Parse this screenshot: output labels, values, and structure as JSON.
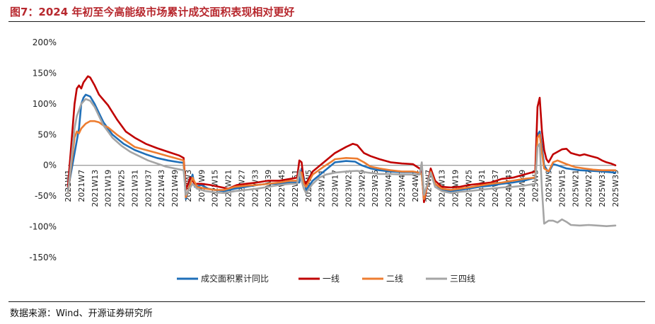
{
  "title": "图7：2024 年初至今高能级市场累计成交面积表现相对更好",
  "source": "数据来源：Wind、开源证券研究所",
  "chart_data": {
    "type": "line",
    "title": "图7：2024 年初至今高能级市场累计成交面积表现相对更好",
    "xlabel": "",
    "ylabel": "",
    "ylim": [
      -150,
      200
    ],
    "yticks": [
      -150,
      -100,
      -50,
      0,
      50,
      100,
      150,
      200
    ],
    "ytick_labels": [
      "-150%",
      "-100%",
      "-50%",
      "0%",
      "50%",
      "100%",
      "150%",
      "200%"
    ],
    "grid": false,
    "legend_position": "bottom",
    "x_count": 247,
    "xtick_labels": [
      "2021W1",
      "2021W7",
      "2021W13",
      "2021W19",
      "2021W25",
      "2021W31",
      "2021W37",
      "2021W43",
      "2021W49",
      "2022W3",
      "2022W9",
      "2022W15",
      "2022W21",
      "2022W27",
      "2022W33",
      "2022W39",
      "2022W45",
      "2022W51",
      "2023W5",
      "2023W11",
      "2023W17",
      "2023W23",
      "2023W29",
      "2023W35",
      "2023W41",
      "2023W47",
      "2024W1",
      "2024W7",
      "2024W13",
      "2024W19",
      "2024W25",
      "2024W31",
      "2024W37",
      "2024W43",
      "2024W49",
      "2025W3",
      "2025W9",
      "2025W15",
      "2025W21",
      "2025W27",
      "2025W33",
      "2025W39"
    ],
    "series": [
      {
        "name": "成交面积累计同比",
        "color": "#1f6fb8",
        "points": [
          [
            0,
            -40
          ],
          [
            5,
            60
          ],
          [
            6,
            100
          ],
          [
            7,
            110
          ],
          [
            8,
            115
          ],
          [
            10,
            112
          ],
          [
            12,
            100
          ],
          [
            14,
            85
          ],
          [
            16,
            70
          ],
          [
            20,
            50
          ],
          [
            25,
            35
          ],
          [
            30,
            25
          ],
          [
            35,
            18
          ],
          [
            40,
            12
          ],
          [
            45,
            8
          ],
          [
            50,
            5
          ],
          [
            52,
            4
          ],
          [
            53,
            -55
          ],
          [
            56,
            -15
          ],
          [
            57,
            -35
          ],
          [
            60,
            -32
          ],
          [
            63,
            -38
          ],
          [
            66,
            -40
          ],
          [
            70,
            -42
          ],
          [
            75,
            -38
          ],
          [
            80,
            -35
          ],
          [
            85,
            -32
          ],
          [
            90,
            -30
          ],
          [
            95,
            -30
          ],
          [
            100,
            -28
          ],
          [
            104,
            -28
          ],
          [
            105,
            -5
          ],
          [
            106,
            -20
          ],
          [
            107,
            -40
          ],
          [
            110,
            -25
          ],
          [
            115,
            -10
          ],
          [
            120,
            5
          ],
          [
            125,
            7
          ],
          [
            129,
            6
          ],
          [
            132,
            0
          ],
          [
            136,
            -5
          ],
          [
            140,
            -8
          ],
          [
            145,
            -10
          ],
          [
            150,
            -11
          ],
          [
            155,
            -11
          ],
          [
            158,
            -12
          ],
          [
            159,
            -15
          ],
          [
            160,
            -55
          ],
          [
            163,
            -10
          ],
          [
            165,
            -30
          ],
          [
            168,
            -40
          ],
          [
            172,
            -42
          ],
          [
            176,
            -40
          ],
          [
            180,
            -38
          ],
          [
            185,
            -35
          ],
          [
            190,
            -33
          ],
          [
            195,
            -30
          ],
          [
            200,
            -28
          ],
          [
            205,
            -25
          ],
          [
            210,
            -20
          ],
          [
            211,
            50
          ],
          [
            212,
            55
          ],
          [
            213,
            30
          ],
          [
            214,
            0
          ],
          [
            216,
            -12
          ],
          [
            218,
            2
          ],
          [
            220,
            0
          ],
          [
            224,
            -5
          ],
          [
            230,
            -8
          ],
          [
            235,
            -9
          ],
          [
            240,
            -10
          ],
          [
            246,
            -12
          ]
        ]
      },
      {
        "name": "一线",
        "color": "#c00000",
        "points": [
          [
            0,
            -35
          ],
          [
            3,
            100
          ],
          [
            4,
            125
          ],
          [
            5,
            130
          ],
          [
            6,
            125
          ],
          [
            7,
            135
          ],
          [
            8,
            140
          ],
          [
            9,
            145
          ],
          [
            10,
            143
          ],
          [
            12,
            130
          ],
          [
            14,
            115
          ],
          [
            18,
            98
          ],
          [
            22,
            75
          ],
          [
            26,
            55
          ],
          [
            30,
            45
          ],
          [
            35,
            35
          ],
          [
            40,
            28
          ],
          [
            45,
            22
          ],
          [
            50,
            16
          ],
          [
            52,
            12
          ],
          [
            53,
            -40
          ],
          [
            55,
            -20
          ],
          [
            57,
            -30
          ],
          [
            60,
            -30
          ],
          [
            64,
            -32
          ],
          [
            68,
            -35
          ],
          [
            72,
            -38
          ],
          [
            76,
            -32
          ],
          [
            80,
            -30
          ],
          [
            85,
            -28
          ],
          [
            90,
            -25
          ],
          [
            95,
            -25
          ],
          [
            100,
            -22
          ],
          [
            103,
            -20
          ],
          [
            104,
            8
          ],
          [
            105,
            5
          ],
          [
            106,
            -25
          ],
          [
            107,
            -30
          ],
          [
            110,
            -10
          ],
          [
            115,
            5
          ],
          [
            120,
            20
          ],
          [
            125,
            30
          ],
          [
            128,
            35
          ],
          [
            130,
            33
          ],
          [
            133,
            20
          ],
          [
            136,
            15
          ],
          [
            140,
            10
          ],
          [
            145,
            5
          ],
          [
            150,
            3
          ],
          [
            155,
            2
          ],
          [
            158,
            -5
          ],
          [
            159,
            -10
          ],
          [
            160,
            -60
          ],
          [
            163,
            -5
          ],
          [
            165,
            -25
          ],
          [
            168,
            -35
          ],
          [
            172,
            -36
          ],
          [
            176,
            -35
          ],
          [
            180,
            -32
          ],
          [
            185,
            -30
          ],
          [
            190,
            -28
          ],
          [
            195,
            -22
          ],
          [
            200,
            -20
          ],
          [
            205,
            -15
          ],
          [
            210,
            -10
          ],
          [
            211,
            95
          ],
          [
            212,
            110
          ],
          [
            213,
            55
          ],
          [
            214,
            25
          ],
          [
            215,
            10
          ],
          [
            216,
            5
          ],
          [
            218,
            18
          ],
          [
            220,
            22
          ],
          [
            222,
            26
          ],
          [
            224,
            27
          ],
          [
            226,
            20
          ],
          [
            228,
            18
          ],
          [
            230,
            16
          ],
          [
            232,
            18
          ],
          [
            235,
            15
          ],
          [
            238,
            12
          ],
          [
            240,
            8
          ],
          [
            242,
            5
          ],
          [
            244,
            3
          ],
          [
            246,
            0
          ]
        ]
      },
      {
        "name": "二线",
        "color": "#ed7d31",
        "points": [
          [
            0,
            -45
          ],
          [
            3,
            45
          ],
          [
            4,
            55
          ],
          [
            5,
            52
          ],
          [
            6,
            60
          ],
          [
            8,
            68
          ],
          [
            10,
            72
          ],
          [
            12,
            72
          ],
          [
            14,
            70
          ],
          [
            16,
            65
          ],
          [
            18,
            62
          ],
          [
            22,
            50
          ],
          [
            26,
            40
          ],
          [
            30,
            30
          ],
          [
            35,
            25
          ],
          [
            40,
            20
          ],
          [
            45,
            15
          ],
          [
            50,
            10
          ],
          [
            52,
            8
          ],
          [
            53,
            -52
          ],
          [
            56,
            -20
          ],
          [
            58,
            -35
          ],
          [
            62,
            -38
          ],
          [
            66,
            -40
          ],
          [
            70,
            -40
          ],
          [
            75,
            -35
          ],
          [
            80,
            -33
          ],
          [
            85,
            -32
          ],
          [
            90,
            -30
          ],
          [
            95,
            -28
          ],
          [
            100,
            -25
          ],
          [
            103,
            -25
          ],
          [
            104,
            -10
          ],
          [
            105,
            -12
          ],
          [
            106,
            -30
          ],
          [
            107,
            -35
          ],
          [
            110,
            -15
          ],
          [
            115,
            -2
          ],
          [
            118,
            5
          ],
          [
            120,
            10
          ],
          [
            125,
            12
          ],
          [
            130,
            11
          ],
          [
            133,
            5
          ],
          [
            136,
            -2
          ],
          [
            140,
            -5
          ],
          [
            145,
            -8
          ],
          [
            150,
            -10
          ],
          [
            155,
            -10
          ],
          [
            158,
            -12
          ],
          [
            159,
            -15
          ],
          [
            160,
            -55
          ],
          [
            163,
            -10
          ],
          [
            165,
            -30
          ],
          [
            168,
            -38
          ],
          [
            172,
            -40
          ],
          [
            176,
            -38
          ],
          [
            180,
            -36
          ],
          [
            185,
            -33
          ],
          [
            190,
            -30
          ],
          [
            195,
            -28
          ],
          [
            200,
            -25
          ],
          [
            205,
            -22
          ],
          [
            210,
            -20
          ],
          [
            211,
            45
          ],
          [
            212,
            50
          ],
          [
            213,
            20
          ],
          [
            214,
            -5
          ],
          [
            216,
            -10
          ],
          [
            218,
            5
          ],
          [
            220,
            8
          ],
          [
            224,
            2
          ],
          [
            228,
            -3
          ],
          [
            232,
            -5
          ],
          [
            236,
            -7
          ],
          [
            240,
            -8
          ],
          [
            244,
            -8
          ],
          [
            246,
            -8
          ]
        ]
      },
      {
        "name": "三四线",
        "color": "#a5a5a5",
        "points": [
          [
            0,
            -45
          ],
          [
            3,
            60
          ],
          [
            4,
            80
          ],
          [
            6,
            100
          ],
          [
            8,
            108
          ],
          [
            10,
            105
          ],
          [
            12,
            95
          ],
          [
            14,
            80
          ],
          [
            16,
            65
          ],
          [
            18,
            55
          ],
          [
            20,
            45
          ],
          [
            24,
            32
          ],
          [
            28,
            22
          ],
          [
            32,
            15
          ],
          [
            36,
            8
          ],
          [
            40,
            3
          ],
          [
            44,
            -2
          ],
          [
            48,
            -5
          ],
          [
            52,
            -8
          ],
          [
            53,
            -48
          ],
          [
            56,
            -30
          ],
          [
            58,
            -38
          ],
          [
            62,
            -42
          ],
          [
            66,
            -44
          ],
          [
            70,
            -45
          ],
          [
            75,
            -42
          ],
          [
            80,
            -40
          ],
          [
            85,
            -38
          ],
          [
            90,
            -35
          ],
          [
            95,
            -32
          ],
          [
            100,
            -30
          ],
          [
            103,
            -30
          ],
          [
            104,
            -8
          ],
          [
            105,
            -25
          ],
          [
            106,
            -38
          ],
          [
            107,
            -45
          ],
          [
            110,
            -30
          ],
          [
            113,
            -20
          ],
          [
            116,
            -15
          ],
          [
            120,
            -12
          ],
          [
            125,
            -10
          ],
          [
            130,
            -9
          ],
          [
            135,
            -12
          ],
          [
            140,
            -14
          ],
          [
            145,
            -14
          ],
          [
            150,
            -15
          ],
          [
            155,
            -15
          ],
          [
            158,
            -15
          ],
          [
            159,
            5
          ],
          [
            160,
            -48
          ],
          [
            163,
            -12
          ],
          [
            165,
            -35
          ],
          [
            168,
            -42
          ],
          [
            172,
            -45
          ],
          [
            176,
            -43
          ],
          [
            180,
            -42
          ],
          [
            185,
            -40
          ],
          [
            190,
            -38
          ],
          [
            195,
            -36
          ],
          [
            200,
            -35
          ],
          [
            205,
            -33
          ],
          [
            210,
            -30
          ],
          [
            211,
            30
          ],
          [
            212,
            35
          ],
          [
            213,
            -40
          ],
          [
            214,
            -95
          ],
          [
            216,
            -90
          ],
          [
            218,
            -90
          ],
          [
            220,
            -93
          ],
          [
            222,
            -88
          ],
          [
            224,
            -92
          ],
          [
            226,
            -97
          ],
          [
            230,
            -98
          ],
          [
            234,
            -97
          ],
          [
            238,
            -98
          ],
          [
            242,
            -99
          ],
          [
            246,
            -98
          ]
        ]
      }
    ]
  }
}
